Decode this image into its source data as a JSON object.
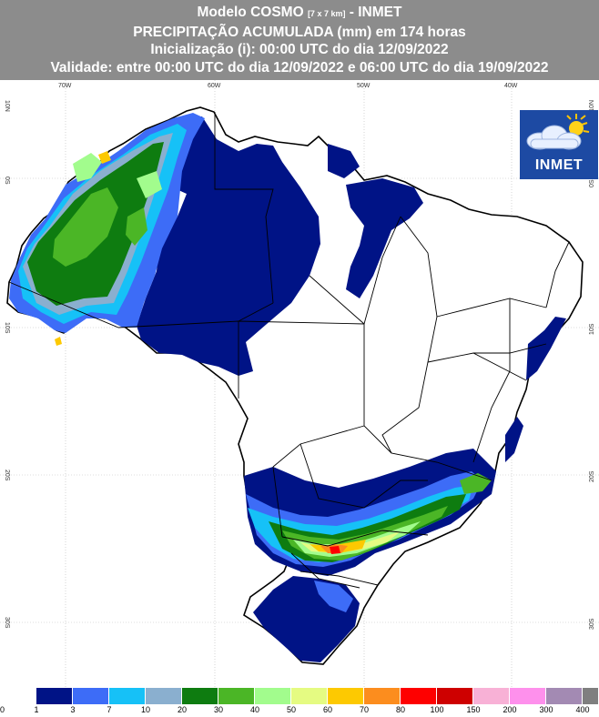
{
  "header": {
    "line1_main": "Modelo COSMO",
    "line1_small": "[7 x 7 km]",
    "line1_tail": "- INMET",
    "line2": "PRECIPITAÇÃO ACUMULADA (mm) em 174 horas",
    "line3": "Inicialização (i): 00:00 UTC do dia 12/09/2022",
    "line4": "Validade: entre 00:00 UTC do dia 12/09/2022 e 06:00 UTC do dia 19/09/2022"
  },
  "grid": {
    "top_labels": [
      "70W",
      "60W",
      "50W",
      "40W"
    ],
    "left_labels": [
      "10N",
      "0S",
      "10S",
      "20S",
      "30S"
    ],
    "right_labels": [
      "10N",
      "0S",
      "10S",
      "20S",
      "30S"
    ]
  },
  "logo": {
    "text": "INMET",
    "icon": "sun-cloud-icon"
  },
  "legend": {
    "colors": [
      "#ffffff",
      "#001386",
      "#3d6cf7",
      "#16c1f7",
      "#8aafcf",
      "#0e7c10",
      "#4bb626",
      "#a2fc8d",
      "#e5fb82",
      "#fdc901",
      "#fc8d1e",
      "#fe0000",
      "#ce0000",
      "#f8b1d6",
      "#fe90ec",
      "#a38ab3",
      "#7f7f7f"
    ],
    "ticks": [
      "0",
      "1",
      "3",
      "7",
      "10",
      "20",
      "30",
      "40",
      "50",
      "60",
      "70",
      "80",
      "100",
      "150",
      "200",
      "300",
      "400"
    ]
  }
}
